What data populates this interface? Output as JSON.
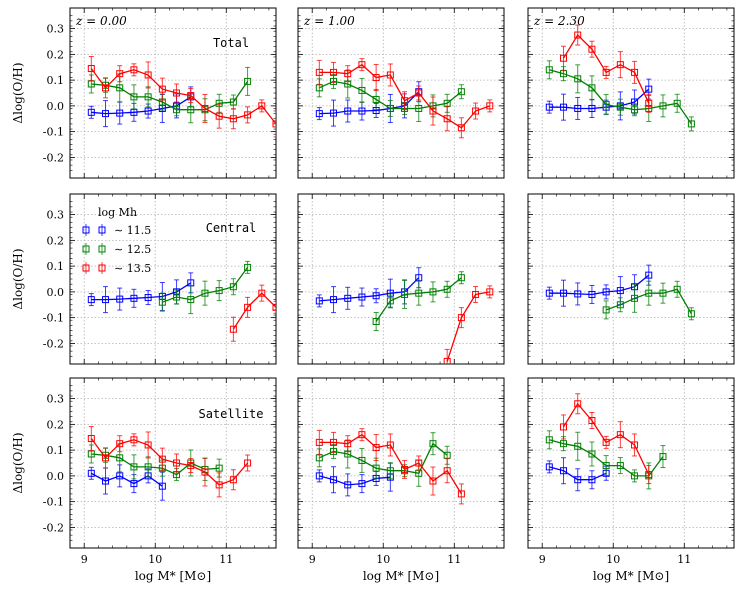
{
  "figure": {
    "xlabel": "log M* [M⊙]",
    "ylabel": "Δlog(O/H)",
    "row_labels": [
      "Total",
      "Central",
      "Satellite"
    ],
    "column_redshifts": [
      "z = 0.00",
      "z = 1.00",
      "z = 2.30"
    ],
    "legend_title": "log Mh",
    "legend_entries": [
      "∼ 11.5",
      "∼ 12.5",
      "∼ 13.5"
    ],
    "series_colors": [
      "#0000ff",
      "#008000",
      "#ff0000"
    ]
  },
  "chart_data": {
    "type": "line",
    "xlim": [
      8.8,
      11.7
    ],
    "ylim": [
      -0.28,
      0.38
    ],
    "xticks": [
      "9",
      "10",
      "11"
    ],
    "yticks": [
      "-0.2",
      "-0.1",
      "0.0",
      "0.1",
      "0.2",
      "0.3"
    ],
    "grid": true,
    "panels": [
      [
        {
          "series": [
            {
              "name": "~11.5",
              "x": [
                9.1,
                9.3,
                9.5,
                9.7,
                9.9,
                10.1,
                10.3,
                10.5
              ],
              "y": [
                -0.025,
                -0.03,
                -0.028,
                -0.025,
                -0.02,
                -0.01,
                0.0,
                0.035
              ]
            },
            {
              "name": "~12.5",
              "x": [
                9.1,
                9.3,
                9.5,
                9.7,
                9.9,
                10.1,
                10.3,
                10.5,
                10.7,
                10.9,
                11.1,
                11.3
              ],
              "y": [
                0.085,
                0.08,
                0.07,
                0.035,
                0.035,
                0.015,
                -0.015,
                -0.015,
                -0.015,
                0.01,
                0.015,
                0.095
              ]
            },
            {
              "name": "~13.5",
              "x": [
                9.1,
                9.3,
                9.5,
                9.7,
                9.9,
                10.1,
                10.3,
                10.5,
                10.7,
                10.9,
                11.1,
                11.3,
                11.5,
                11.7
              ],
              "y": [
                0.145,
                0.07,
                0.125,
                0.14,
                0.12,
                0.065,
                0.05,
                0.04,
                -0.01,
                -0.04,
                -0.05,
                -0.035,
                0.0,
                -0.07
              ]
            }
          ]
        },
        {
          "series": [
            {
              "name": "~11.5",
              "x": [
                9.1,
                9.3,
                9.5,
                9.7,
                9.9,
                10.1,
                10.3,
                10.5
              ],
              "y": [
                -0.03,
                -0.028,
                -0.02,
                -0.02,
                -0.018,
                -0.01,
                0.0,
                0.055
              ]
            },
            {
              "name": "~12.5",
              "x": [
                9.1,
                9.3,
                9.5,
                9.7,
                9.9,
                10.1,
                10.3,
                10.5,
                10.7,
                10.9,
                11.1
              ],
              "y": [
                0.07,
                0.095,
                0.085,
                0.06,
                0.025,
                -0.01,
                -0.01,
                -0.01,
                0.0,
                0.01,
                0.055
              ]
            },
            {
              "name": "~13.5",
              "x": [
                9.1,
                9.3,
                9.5,
                9.7,
                9.9,
                10.1,
                10.3,
                10.5,
                10.7,
                10.9,
                11.1,
                11.3,
                11.5
              ],
              "y": [
                0.13,
                0.13,
                0.125,
                0.16,
                0.11,
                0.12,
                0.02,
                0.05,
                -0.02,
                -0.05,
                -0.085,
                -0.02,
                0.0
              ]
            }
          ]
        },
        {
          "series": [
            {
              "name": "~11.5",
              "x": [
                9.1,
                9.3,
                9.5,
                9.7,
                9.9,
                10.1,
                10.3,
                10.5
              ],
              "y": [
                -0.005,
                -0.005,
                -0.01,
                -0.01,
                -0.005,
                0.0,
                0.015,
                0.065
              ]
            },
            {
              "name": "~12.5",
              "x": [
                9.1,
                9.3,
                9.5,
                9.7,
                9.9,
                10.1,
                10.3,
                10.5,
                10.7,
                10.9,
                11.1
              ],
              "y": [
                0.14,
                0.125,
                0.105,
                0.07,
                0.005,
                -0.005,
                -0.015,
                -0.01,
                0.0,
                0.01,
                -0.07
              ]
            },
            {
              "name": "~13.5",
              "x": [
                9.3,
                9.5,
                9.7,
                9.9,
                10.1,
                10.3,
                10.5
              ],
              "y": [
                0.185,
                0.275,
                0.22,
                0.13,
                0.16,
                0.13,
                0.01
              ]
            }
          ]
        }
      ],
      [
        {
          "series": [
            {
              "name": "~11.5",
              "x": [
                9.1,
                9.3,
                9.5,
                9.7,
                9.9,
                10.1,
                10.3,
                10.5
              ],
              "y": [
                -0.03,
                -0.03,
                -0.028,
                -0.025,
                -0.022,
                -0.018,
                0.0,
                0.035
              ]
            },
            {
              "name": "~12.5",
              "x": [
                10.1,
                10.3,
                10.5,
                10.7,
                10.9,
                11.1,
                11.3
              ],
              "y": [
                -0.04,
                -0.02,
                -0.03,
                -0.005,
                0.005,
                0.02,
                0.095
              ]
            },
            {
              "name": "~13.5",
              "x": [
                11.1,
                11.3,
                11.5,
                11.7
              ],
              "y": [
                -0.145,
                -0.06,
                -0.005,
                -0.06
              ]
            }
          ]
        },
        {
          "series": [
            {
              "name": "~11.5",
              "x": [
                9.1,
                9.3,
                9.5,
                9.7,
                9.9,
                10.1,
                10.3,
                10.5
              ],
              "y": [
                -0.035,
                -0.03,
                -0.025,
                -0.02,
                -0.015,
                -0.005,
                0.0,
                0.055
              ]
            },
            {
              "name": "~12.5",
              "x": [
                9.9,
                10.1,
                10.3,
                10.5,
                10.7,
                10.9,
                11.1
              ],
              "y": [
                -0.115,
                -0.035,
                -0.01,
                -0.005,
                0.0,
                0.01,
                0.055
              ]
            },
            {
              "name": "~13.5",
              "x": [
                10.9,
                11.1,
                11.3,
                11.5
              ],
              "y": [
                -0.27,
                -0.1,
                -0.01,
                0.0
              ]
            }
          ]
        },
        {
          "series": [
            {
              "name": "~11.5",
              "x": [
                9.1,
                9.3,
                9.5,
                9.7,
                9.9,
                10.1,
                10.3,
                10.5
              ],
              "y": [
                -0.005,
                -0.005,
                -0.008,
                -0.01,
                0.0,
                0.005,
                0.02,
                0.065
              ]
            },
            {
              "name": "~12.5",
              "x": [
                9.9,
                10.1,
                10.3,
                10.5,
                10.7,
                10.9,
                11.1
              ],
              "y": [
                -0.07,
                -0.05,
                -0.025,
                -0.005,
                -0.005,
                0.01,
                -0.085
              ]
            }
          ]
        }
      ],
      [
        {
          "series": [
            {
              "name": "~11.5",
              "x": [
                9.1,
                9.3,
                9.5,
                9.7,
                9.9,
                10.1
              ],
              "y": [
                0.01,
                -0.02,
                0.0,
                -0.03,
                0.0,
                -0.04
              ]
            },
            {
              "name": "~12.5",
              "x": [
                9.1,
                9.3,
                9.5,
                9.7,
                9.9,
                10.1,
                10.3,
                10.5,
                10.7,
                10.9
              ],
              "y": [
                0.085,
                0.08,
                0.07,
                0.035,
                0.035,
                0.03,
                0.005,
                0.05,
                0.025,
                0.03
              ]
            },
            {
              "name": "~13.5",
              "x": [
                9.1,
                9.3,
                9.5,
                9.7,
                9.9,
                10.1,
                10.3,
                10.5,
                10.7,
                10.9,
                11.1,
                11.3
              ],
              "y": [
                0.145,
                0.07,
                0.125,
                0.14,
                0.12,
                0.065,
                0.05,
                0.04,
                0.015,
                -0.035,
                -0.015,
                0.05
              ]
            }
          ]
        },
        {
          "series": [
            {
              "name": "~11.5",
              "x": [
                9.1,
                9.3,
                9.5,
                9.7,
                9.9,
                10.1
              ],
              "y": [
                0.0,
                -0.015,
                -0.035,
                -0.03,
                -0.01,
                -0.005
              ]
            },
            {
              "name": "~12.5",
              "x": [
                9.1,
                9.3,
                9.5,
                9.7,
                9.9,
                10.1,
                10.3,
                10.5,
                10.7,
                10.9
              ],
              "y": [
                0.07,
                0.095,
                0.085,
                0.06,
                0.03,
                0.02,
                0.02,
                0.01,
                0.125,
                0.08
              ]
            },
            {
              "name": "~13.5",
              "x": [
                9.1,
                9.3,
                9.5,
                9.7,
                9.9,
                10.1,
                10.3,
                10.5,
                10.7,
                10.9,
                11.1
              ],
              "y": [
                0.13,
                0.13,
                0.125,
                0.16,
                0.11,
                0.12,
                0.025,
                0.05,
                -0.02,
                0.02,
                -0.07
              ]
            }
          ]
        },
        {
          "series": [
            {
              "name": "~11.5",
              "x": [
                9.1,
                9.3,
                9.5,
                9.7,
                9.9
              ],
              "y": [
                0.035,
                0.02,
                -0.015,
                -0.015,
                0.01
              ]
            },
            {
              "name": "~12.5",
              "x": [
                9.1,
                9.3,
                9.5,
                9.7,
                9.9,
                10.1,
                10.3,
                10.5,
                10.7
              ],
              "y": [
                0.14,
                0.125,
                0.115,
                0.085,
                0.04,
                0.04,
                0.0,
                0.0,
                0.075
              ]
            },
            {
              "name": "~13.5",
              "x": [
                9.3,
                9.5,
                9.7,
                9.9,
                10.1,
                10.3,
                10.5
              ],
              "y": [
                0.19,
                0.28,
                0.215,
                0.13,
                0.16,
                0.12,
                0.005
              ]
            }
          ]
        }
      ]
    ]
  }
}
